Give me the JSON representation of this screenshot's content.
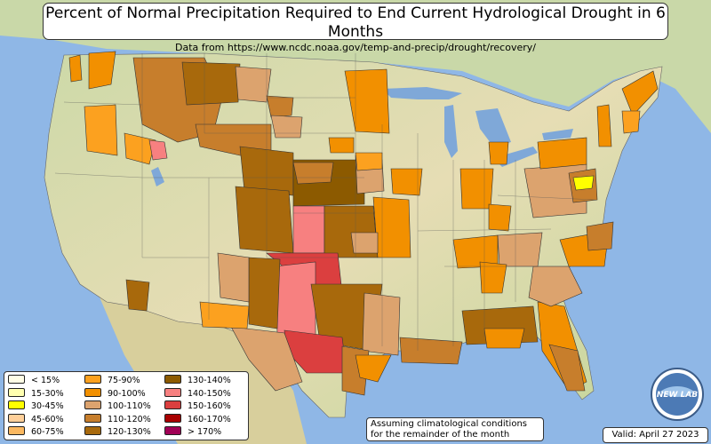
{
  "title": "Percent of Normal Precipitation Required to End Current Hydrological Drought in 6 Months",
  "subtitle": "Data from https://www.ncdc.noaa.gov/temp-and-precip/drought/recovery/",
  "legend": [
    {
      "label": "< 15%",
      "color": "#fffde6"
    },
    {
      "label": "15-30%",
      "color": "#ffffb0"
    },
    {
      "label": "30-45%",
      "color": "#ffff00"
    },
    {
      "label": "45-60%",
      "color": "#ffd09a"
    },
    {
      "label": "60-75%",
      "color": "#fbb860"
    },
    {
      "label": "75-90%",
      "color": "#fca11f"
    },
    {
      "label": "90-100%",
      "color": "#f29000"
    },
    {
      "label": "100-110%",
      "color": "#dca36e"
    },
    {
      "label": "110-120%",
      "color": "#c77e2c"
    },
    {
      "label": "120-130%",
      "color": "#a8690c"
    },
    {
      "label": "130-140%",
      "color": "#8c5a00"
    },
    {
      "label": "140-150%",
      "color": "#f78080"
    },
    {
      "label": "150-160%",
      "color": "#db3f3f"
    },
    {
      "label": "160-170%",
      "color": "#a80000"
    },
    {
      "label": "> 170%",
      "color": "#a00055"
    }
  ],
  "note_line1": "Assuming climatological conditions",
  "note_line2": "for the remainder of the month",
  "valid": "Valid: April 27 2023",
  "logo_text": "NEW LAB",
  "colors": {
    "ocean": "#8fb7e6",
    "lake": "#7fa8d8",
    "land_light": "#e6ddb4",
    "land_green": "#b7cd98"
  }
}
